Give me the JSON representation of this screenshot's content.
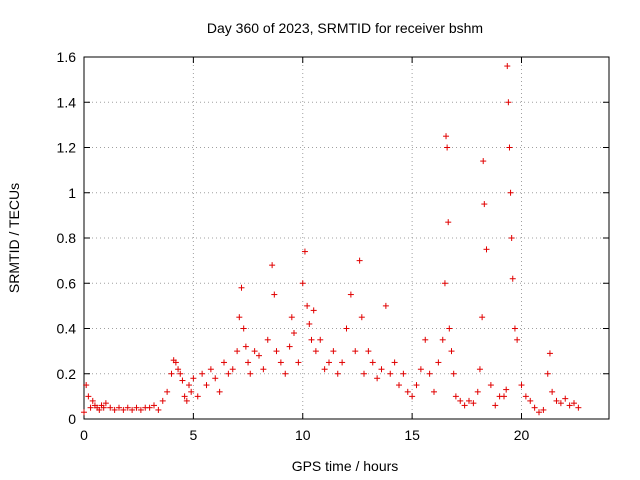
{
  "chart_data": {
    "type": "scatter",
    "title": "Day 360 of 2023, SRMTID for receiver bshm",
    "xlabel": "GPS time / hours",
    "ylabel": "SRMTID / TECUs",
    "xlim": [
      0,
      24
    ],
    "ylim": [
      0,
      1.6
    ],
    "x_ticks": [
      0,
      5,
      10,
      15,
      20
    ],
    "x_tick_labels": [
      "0",
      "5",
      "10",
      "15",
      "20"
    ],
    "y_ticks": [
      0,
      0.2,
      0.4,
      0.6,
      0.8,
      1,
      1.2,
      1.4,
      1.6
    ],
    "y_tick_labels": [
      "0",
      "0.2",
      "0.4",
      "0.6",
      "0.8",
      "1",
      "1.2",
      "1.4",
      "1.6"
    ],
    "grid": true,
    "marker": "plus",
    "series": [
      {
        "name": "SRMTID",
        "color": "#e00000",
        "x": [
          0.0,
          0.1,
          0.2,
          0.3,
          0.4,
          0.5,
          0.6,
          0.7,
          0.8,
          0.9,
          1.0,
          1.2,
          1.4,
          1.6,
          1.8,
          2.0,
          2.2,
          2.4,
          2.6,
          2.8,
          3.0,
          3.2,
          3.4,
          3.6,
          3.8,
          4.0,
          4.1,
          4.2,
          4.3,
          4.4,
          4.5,
          4.6,
          4.7,
          4.8,
          4.9,
          5.0,
          5.2,
          5.4,
          5.6,
          5.8,
          6.0,
          6.2,
          6.4,
          6.6,
          6.8,
          7.0,
          7.1,
          7.2,
          7.3,
          7.4,
          7.5,
          7.6,
          7.8,
          8.0,
          8.2,
          8.4,
          8.6,
          8.7,
          8.8,
          9.0,
          9.2,
          9.4,
          9.5,
          9.6,
          9.8,
          10.0,
          10.1,
          10.2,
          10.3,
          10.4,
          10.5,
          10.6,
          10.8,
          11.0,
          11.2,
          11.4,
          11.6,
          11.8,
          12.0,
          12.2,
          12.4,
          12.6,
          12.7,
          12.8,
          13.0,
          13.2,
          13.4,
          13.6,
          13.8,
          14.0,
          14.2,
          14.4,
          14.6,
          14.8,
          15.0,
          15.2,
          15.4,
          15.6,
          15.8,
          16.0,
          16.2,
          16.4,
          16.5,
          16.55,
          16.6,
          16.65,
          16.7,
          16.8,
          16.9,
          17.0,
          17.2,
          17.4,
          17.6,
          17.8,
          18.0,
          18.1,
          18.2,
          18.25,
          18.3,
          18.4,
          18.6,
          18.8,
          19.0,
          19.2,
          19.3,
          19.35,
          19.4,
          19.45,
          19.5,
          19.55,
          19.6,
          19.7,
          19.8,
          20.0,
          20.2,
          20.4,
          20.6,
          20.8,
          21.0,
          21.2,
          21.3,
          21.4,
          21.6,
          21.8,
          22.0,
          22.2,
          22.4,
          22.6
        ],
        "y": [
          0.03,
          0.15,
          0.1,
          0.05,
          0.08,
          0.06,
          0.05,
          0.04,
          0.06,
          0.05,
          0.07,
          0.05,
          0.04,
          0.05,
          0.04,
          0.05,
          0.04,
          0.05,
          0.04,
          0.05,
          0.05,
          0.06,
          0.04,
          0.08,
          0.12,
          0.2,
          0.26,
          0.25,
          0.22,
          0.2,
          0.17,
          0.1,
          0.08,
          0.15,
          0.12,
          0.18,
          0.1,
          0.2,
          0.15,
          0.22,
          0.18,
          0.12,
          0.25,
          0.2,
          0.22,
          0.3,
          0.45,
          0.58,
          0.4,
          0.32,
          0.25,
          0.2,
          0.3,
          0.28,
          0.22,
          0.35,
          0.68,
          0.55,
          0.3,
          0.25,
          0.2,
          0.32,
          0.45,
          0.38,
          0.25,
          0.6,
          0.74,
          0.5,
          0.42,
          0.35,
          0.48,
          0.3,
          0.35,
          0.22,
          0.25,
          0.3,
          0.2,
          0.25,
          0.4,
          0.55,
          0.3,
          0.7,
          0.45,
          0.2,
          0.3,
          0.25,
          0.18,
          0.22,
          0.5,
          0.2,
          0.25,
          0.15,
          0.2,
          0.12,
          0.1,
          0.15,
          0.22,
          0.35,
          0.2,
          0.12,
          0.25,
          0.35,
          0.6,
          1.25,
          1.2,
          0.87,
          0.4,
          0.3,
          0.2,
          0.1,
          0.08,
          0.06,
          0.08,
          0.07,
          0.12,
          0.22,
          0.45,
          1.14,
          0.95,
          0.75,
          0.15,
          0.06,
          0.1,
          0.1,
          0.13,
          1.56,
          1.4,
          1.2,
          1.0,
          0.8,
          0.62,
          0.4,
          0.35,
          0.15,
          0.1,
          0.08,
          0.05,
          0.03,
          0.04,
          0.2,
          0.29,
          0.12,
          0.08,
          0.07,
          0.09,
          0.06,
          0.07,
          0.05
        ]
      }
    ]
  }
}
